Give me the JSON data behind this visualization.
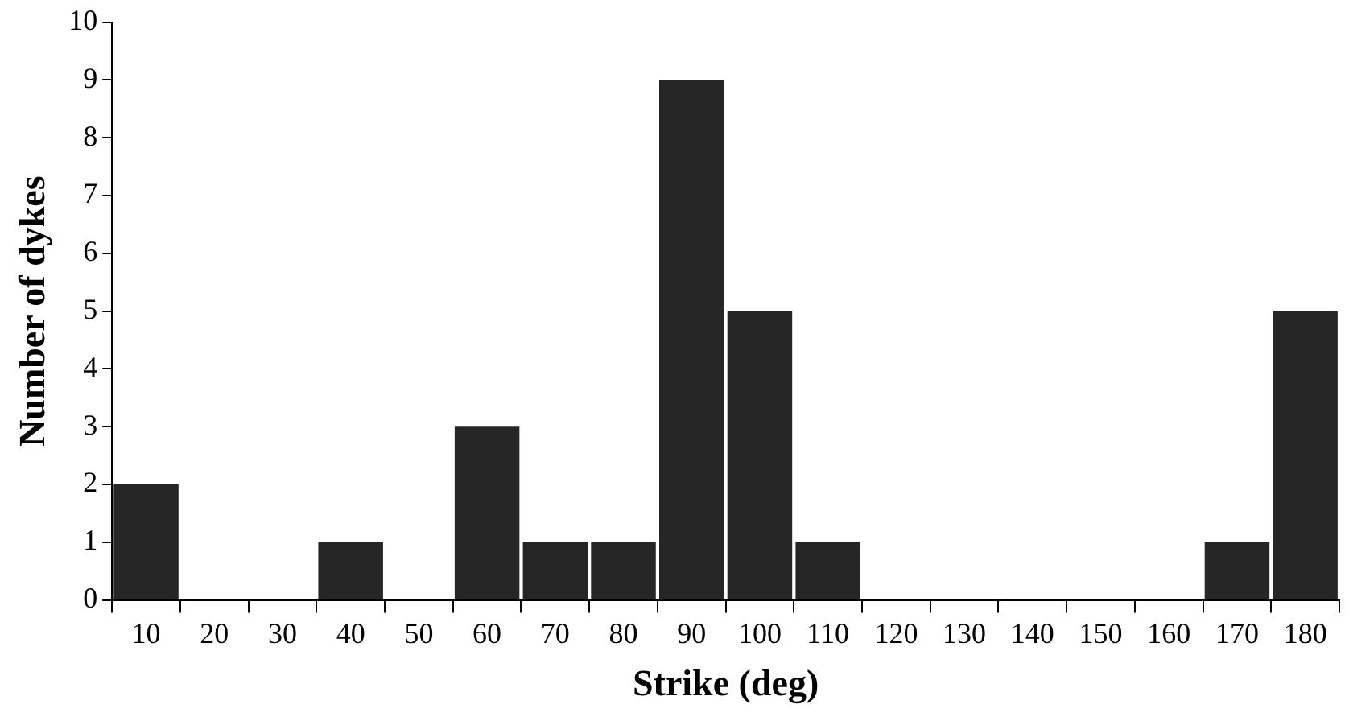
{
  "chart_data": {
    "type": "bar",
    "xlabel": "Strike (deg)",
    "ylabel": "Number of dykes",
    "categories": [
      "10",
      "20",
      "30",
      "40",
      "50",
      "60",
      "70",
      "80",
      "90",
      "100",
      "110",
      "120",
      "130",
      "140",
      "150",
      "160",
      "170",
      "180"
    ],
    "values": [
      2,
      0,
      0,
      1,
      0,
      3,
      1,
      1,
      9,
      5,
      1,
      0,
      0,
      0,
      0,
      0,
      1,
      5
    ],
    "color": "#262626",
    "ylim": [
      0,
      10
    ],
    "yticks": [
      0,
      1,
      2,
      3,
      4,
      5,
      6,
      7,
      8,
      9,
      10
    ],
    "grid": false,
    "legend": false
  }
}
